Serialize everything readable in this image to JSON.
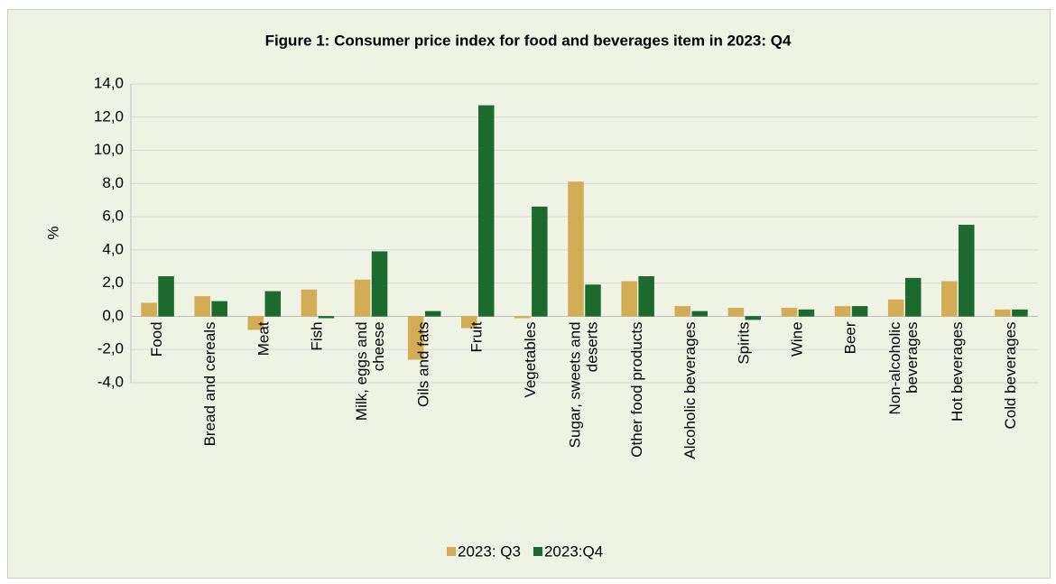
{
  "chart_data": {
    "type": "bar",
    "title": "Figure 1: Consumer price index for food and beverages item in 2023: Q4",
    "y_label": "%",
    "categories": [
      "Food",
      "Bread and cereals",
      "Meat",
      "Fish",
      "Milk, eggs and cheese",
      "Oils and fats",
      "Fruit",
      "Vegetables",
      "Sugar, sweets and deserts",
      "Other food products",
      "Alcoholic beverages",
      "Spirits",
      "Wine",
      "Beer",
      "Non-alcoholic beverages",
      "Hot beverages",
      "Cold beverages"
    ],
    "series": [
      {
        "name": "2023: Q3",
        "color": "#d2ad55",
        "values": [
          0.8,
          1.2,
          -0.8,
          1.6,
          2.2,
          -2.6,
          -0.7,
          -0.1,
          8.1,
          2.1,
          0.6,
          0.5,
          0.5,
          0.6,
          1.0,
          2.1,
          0.4
        ]
      },
      {
        "name": "2023:Q4",
        "color": "#1d6a2e",
        "values": [
          2.4,
          0.9,
          1.5,
          -0.1,
          3.9,
          0.3,
          12.7,
          6.6,
          1.9,
          2.4,
          0.3,
          -0.2,
          0.4,
          0.6,
          2.3,
          5.5,
          0.4
        ]
      }
    ],
    "ylim": [
      -4,
      14
    ],
    "yticks": [
      {
        "value": -4,
        "label": "-4,0"
      },
      {
        "value": -2,
        "label": "-2,0"
      },
      {
        "value": 0,
        "label": "0,0"
      },
      {
        "value": 2,
        "label": "2,0"
      },
      {
        "value": 4,
        "label": "4,0"
      },
      {
        "value": 6,
        "label": "6,0"
      },
      {
        "value": 8,
        "label": "8,0"
      },
      {
        "value": 10,
        "label": "10,0"
      },
      {
        "value": 12,
        "label": "12,0"
      },
      {
        "value": 14,
        "label": "14,0"
      }
    ],
    "grid": true,
    "legend": "bottom"
  }
}
